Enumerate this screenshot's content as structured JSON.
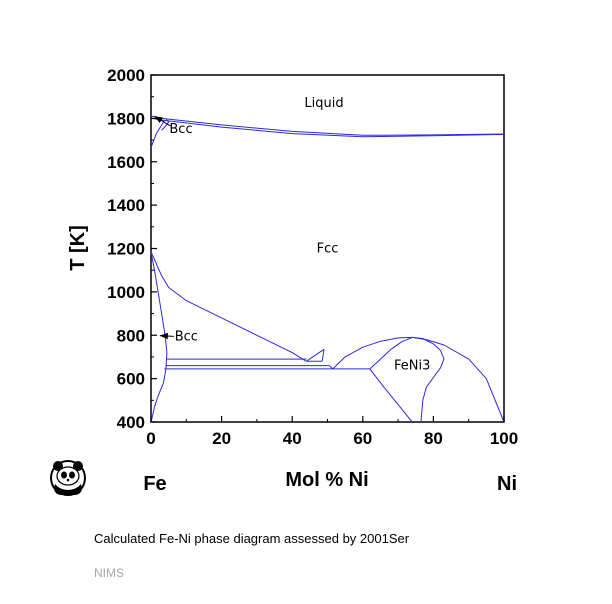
{
  "chart_data": {
    "type": "line",
    "title": "",
    "xlabel": "Mol % Ni",
    "ylabel": "T [K]",
    "xlim": [
      0,
      100
    ],
    "ylim": [
      400,
      2000
    ],
    "xticks": [
      "0",
      "20",
      "40",
      "60",
      "80",
      "100"
    ],
    "yticks": [
      "400",
      "600",
      "800",
      "1000",
      "1200",
      "1400",
      "1600",
      "1800",
      "2000"
    ],
    "grid": false,
    "line_color": "#2a2ae0",
    "element_left": "Fe",
    "element_right": "Ni",
    "region_labels": [
      {
        "text": "Liquid",
        "x": 49,
        "y": 1870
      },
      {
        "text": "Fcc",
        "x": 50,
        "y": 1200
      },
      {
        "text": "Bcc",
        "x": 8.5,
        "y": 1750
      },
      {
        "text": "Bcc",
        "x": 10,
        "y": 795
      },
      {
        "text": "FeNi3",
        "x": 74,
        "y": 660
      }
    ],
    "arrows": [
      {
        "from": [
          5.5,
          1765
        ],
        "to": [
          1,
          1810
        ]
      },
      {
        "from": [
          6.5,
          795
        ],
        "to": [
          2.5,
          798
        ]
      }
    ],
    "series": [
      {
        "x": [
          0,
          4,
          20,
          40,
          60,
          80,
          100
        ],
        "y": [
          1811,
          1798,
          1770,
          1740,
          1722,
          1724,
          1728
        ]
      },
      {
        "x": [
          0,
          3.5,
          20,
          40,
          60,
          80,
          100
        ],
        "y": [
          1801,
          1791,
          1760,
          1730,
          1715,
          1720,
          1726
        ]
      },
      {
        "x": [
          0,
          1.5,
          3.8
        ],
        "y": [
          1665,
          1730,
          1790
        ]
      },
      {
        "x": [
          3,
          4,
          5,
          4.3
        ],
        "y": [
          1745,
          1762,
          1783,
          1795
        ]
      },
      {
        "x": [
          0,
          1,
          2,
          3,
          5,
          10,
          20,
          30,
          40,
          44
        ],
        "y": [
          1184,
          1150,
          1110,
          1075,
          1020,
          960,
          880,
          800,
          720,
          680
        ]
      },
      {
        "x": [
          0,
          1,
          2,
          3,
          4,
          4.5,
          4.2,
          3.5
        ],
        "y": [
          1184,
          1100,
          1000,
          900,
          800,
          720,
          640,
          580
        ]
      },
      {
        "x": [
          3.5,
          2,
          1,
          0.3,
          0
        ],
        "y": [
          580,
          520,
          470,
          420,
          400
        ]
      },
      {
        "x": [
          4.5,
          44
        ],
        "y": [
          690,
          690
        ]
      },
      {
        "x": [
          4.3,
          50.5
        ],
        "y": [
          660,
          660
        ]
      },
      {
        "x": [
          3.8,
          62
        ],
        "y": [
          645,
          645
        ]
      },
      {
        "x": [
          44,
          49
        ],
        "y": [
          680,
          735
        ]
      },
      {
        "x": [
          44,
          48.5
        ],
        "y": [
          680,
          680
        ]
      },
      {
        "x": [
          48.5,
          49
        ],
        "y": [
          680,
          735
        ]
      },
      {
        "x": [
          50.5,
          51.5
        ],
        "y": [
          660,
          645
        ]
      },
      {
        "x": [
          51.5,
          55,
          60,
          65,
          70,
          74,
          78,
          83,
          90,
          95,
          100
        ],
        "y": [
          645,
          700,
          745,
          772,
          788,
          790,
          780,
          755,
          690,
          600,
          400
        ]
      },
      {
        "x": [
          62,
          65,
          68,
          71,
          74,
          77,
          80,
          82,
          83,
          82,
          80,
          78,
          77,
          76.5
        ],
        "y": [
          645,
          690,
          735,
          770,
          790,
          785,
          760,
          730,
          690,
          650,
          605,
          560,
          500,
          400
        ]
      },
      {
        "x": [
          62,
          66,
          70,
          73,
          74
        ],
        "y": [
          645,
          560,
          480,
          420,
          400
        ]
      }
    ]
  },
  "caption": "Calculated Fe-Ni phase diagram assessed by 2001Ser",
  "footer": "NIMS",
  "logo": "panda-logo-icon"
}
